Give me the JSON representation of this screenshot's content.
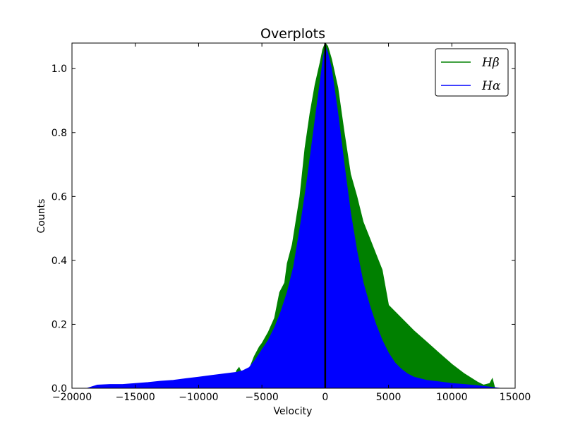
{
  "chart_data": {
    "type": "area",
    "title": "Overplots",
    "xlabel": "Velocity",
    "ylabel": "Counts",
    "xlim": [
      -20000,
      15000
    ],
    "ylim": [
      0,
      1.08
    ],
    "xticks": [
      -20000,
      -15000,
      -10000,
      -5000,
      0,
      5000,
      10000,
      15000
    ],
    "xtick_labels": [
      "−20000",
      "−15000",
      "−10000",
      "−5000",
      "0",
      "5000",
      "10000",
      "15000"
    ],
    "yticks": [
      0.0,
      0.2,
      0.4,
      0.6,
      0.8,
      1.0
    ],
    "ytick_labels": [
      "0.0",
      "0.2",
      "0.4",
      "0.6",
      "0.8",
      "1.0"
    ],
    "legend_position": "top-right",
    "vertical_line_x": 0,
    "series": [
      {
        "name": "Hβ",
        "color": "#008000",
        "x": [
          -7400,
          -7000,
          -6800,
          -6500,
          -6200,
          -6000,
          -5600,
          -5200,
          -5000,
          -4500,
          -4000,
          -3600,
          -3200,
          -3000,
          -2600,
          -2000,
          -1600,
          -1200,
          -800,
          -400,
          -200,
          0,
          200,
          500,
          1000,
          1500,
          2000,
          2500,
          3000,
          3500,
          4000,
          4500,
          5000,
          6000,
          7000,
          8000,
          9000,
          10000,
          11000,
          12000,
          12500,
          13000,
          13200,
          13400
        ],
        "y": [
          0.0,
          0.055,
          0.065,
          0.04,
          0.05,
          0.06,
          0.1,
          0.13,
          0.14,
          0.175,
          0.22,
          0.3,
          0.33,
          0.39,
          0.45,
          0.6,
          0.75,
          0.86,
          0.95,
          1.02,
          1.06,
          1.08,
          1.07,
          1.03,
          0.94,
          0.8,
          0.67,
          0.6,
          0.52,
          0.47,
          0.42,
          0.37,
          0.26,
          0.22,
          0.18,
          0.145,
          0.11,
          0.075,
          0.045,
          0.02,
          0.01,
          0.015,
          0.03,
          0.0
        ]
      },
      {
        "name": "Hα",
        "color": "#0000ff",
        "x": [
          -18800,
          -18000,
          -17000,
          -16000,
          -15000,
          -14000,
          -13000,
          -12000,
          -11000,
          -10000,
          -9000,
          -8000,
          -7000,
          -6500,
          -6000,
          -5500,
          -5000,
          -4500,
          -4000,
          -3500,
          -3000,
          -2500,
          -2000,
          -1500,
          -1000,
          -500,
          -200,
          0,
          200,
          500,
          1000,
          1500,
          2000,
          2500,
          3000,
          3500,
          4000,
          4500,
          5000,
          5500,
          6000,
          6500,
          7000,
          8000,
          9000,
          10000,
          11000,
          12000,
          13000,
          13800
        ],
        "y": [
          0.0,
          0.01,
          0.012,
          0.012,
          0.015,
          0.018,
          0.022,
          0.025,
          0.03,
          0.035,
          0.04,
          0.045,
          0.05,
          0.055,
          0.065,
          0.09,
          0.12,
          0.15,
          0.19,
          0.24,
          0.3,
          0.38,
          0.5,
          0.63,
          0.78,
          0.93,
          1.02,
          1.07,
          1.05,
          1.0,
          0.86,
          0.7,
          0.55,
          0.43,
          0.33,
          0.26,
          0.2,
          0.15,
          0.11,
          0.08,
          0.06,
          0.045,
          0.035,
          0.025,
          0.02,
          0.015,
          0.012,
          0.008,
          0.004,
          0.0
        ]
      }
    ]
  }
}
